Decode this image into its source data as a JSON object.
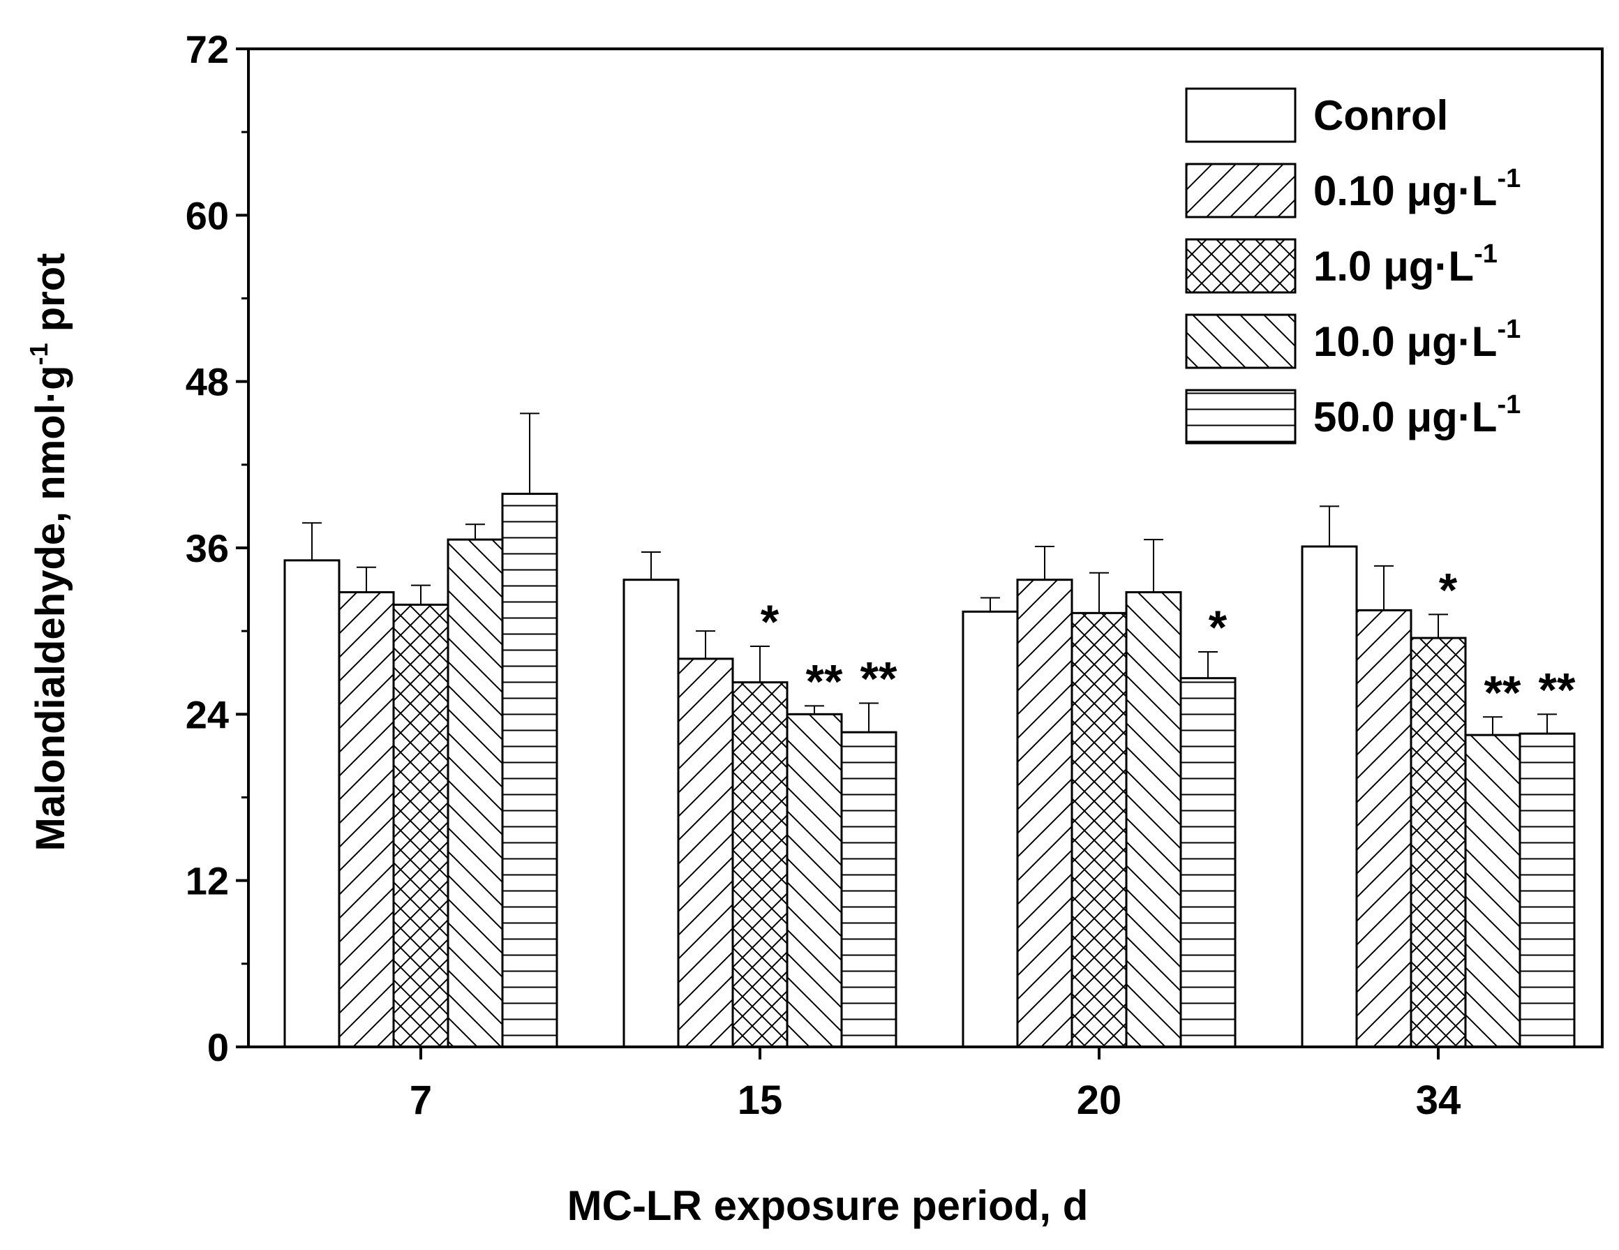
{
  "chart_data": {
    "type": "bar",
    "title": "",
    "xlabel": "MC-LR exposure period, d",
    "ylabel_main": "Malondialdehyde, nmol·g",
    "ylabel_sup": "-1",
    "ylabel_tail": " prot",
    "ylim": [
      0,
      72
    ],
    "yticks": [
      "0",
      "12",
      "24",
      "36",
      "48",
      "60",
      "72"
    ],
    "categories": [
      "7",
      "15",
      "20",
      "34"
    ],
    "legend_position": "top-right",
    "series": [
      {
        "name": "Conrol",
        "name_main": "Conrol",
        "name_sup": "",
        "pattern": "none",
        "values": [
          35.1,
          33.7,
          31.4,
          36.1
        ],
        "errors": [
          2.7,
          2.0,
          1.0,
          2.9
        ],
        "stars": [
          "",
          "",
          "",
          ""
        ]
      },
      {
        "name": "0.10 μg·L-1",
        "name_main": "0.10 μg·L",
        "name_sup": "-1",
        "pattern": "diag-up",
        "values": [
          32.8,
          28.0,
          33.7,
          31.5
        ],
        "errors": [
          1.8,
          2.0,
          2.4,
          3.2
        ],
        "stars": [
          "",
          "",
          "",
          ""
        ]
      },
      {
        "name": "1.0 μg·L-1",
        "name_main": "1.0 μg·L",
        "name_sup": "-1",
        "pattern": "cross",
        "values": [
          31.9,
          26.3,
          31.3,
          29.5
        ],
        "errors": [
          1.4,
          2.6,
          2.9,
          1.7
        ],
        "stars": [
          "",
          "*",
          "",
          "*"
        ]
      },
      {
        "name": "10.0 μg·L-1",
        "name_main": "10.0 μg·L",
        "name_sup": "-1",
        "pattern": "diag-down",
        "values": [
          36.6,
          24.0,
          32.8,
          22.5
        ],
        "errors": [
          1.1,
          0.6,
          3.8,
          1.3
        ],
        "stars": [
          "",
          "**",
          "",
          "**"
        ]
      },
      {
        "name": "50.0 μg·L-1",
        "name_main": "50.0 μg·L",
        "name_sup": "-1",
        "pattern": "horizontal",
        "values": [
          39.9,
          22.7,
          26.6,
          22.6
        ],
        "errors": [
          5.8,
          2.1,
          1.9,
          1.4
        ],
        "stars": [
          "",
          "**",
          "*",
          "**"
        ]
      }
    ]
  }
}
